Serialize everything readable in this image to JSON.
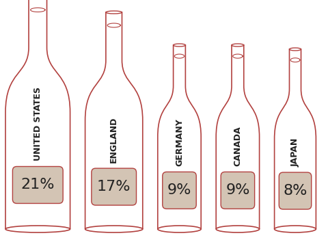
{
  "chart_data": {
    "type": "bar",
    "categories": [
      "UNITED STATES",
      "ENGLAND",
      "GERMANY",
      "CANADA",
      "JAPAN"
    ],
    "values": [
      21,
      17,
      9,
      9,
      8
    ],
    "value_labels": [
      "21%",
      "17%",
      "9%",
      "9%",
      "8%"
    ],
    "color": "#d3c4b4",
    "data_labels": true,
    "tick_labels": false
  }
}
